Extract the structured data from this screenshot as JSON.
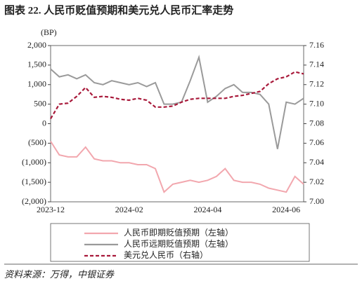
{
  "chart_data": {
    "type": "line",
    "title": "图表 22. 人民币贬值预期和美元兑人民币汇率走势",
    "y_axis_unit": "(BP)",
    "source": "资料来源：万得，中银证券",
    "categories": [
      "2023-12",
      null,
      null,
      null,
      null,
      null,
      null,
      null,
      null,
      "2024-02",
      null,
      null,
      null,
      null,
      null,
      null,
      null,
      null,
      "2024-04",
      null,
      null,
      null,
      null,
      null,
      null,
      null,
      null,
      "2024-06",
      null,
      null
    ],
    "ylim": [
      -2000,
      2000
    ],
    "yticks": [
      {
        "value": -2000,
        "label": "(2,000)"
      },
      {
        "value": -1500,
        "label": "(1,500)"
      },
      {
        "value": -1000,
        "label": "(1,000)"
      },
      {
        "value": -500,
        "label": "(500)"
      },
      0,
      500,
      {
        "value": 1000,
        "label": "1,000"
      },
      {
        "value": 1500,
        "label": "1,500"
      },
      {
        "value": 2000,
        "label": "2,000"
      }
    ],
    "y2lim": [
      7.0,
      7.16
    ],
    "y2ticks": [
      {
        "value": 7.0,
        "label": "7.00"
      },
      7.02,
      7.04,
      7.06,
      7.08,
      {
        "value": 7.1,
        "label": "7.10"
      },
      7.12,
      7.14,
      7.16
    ],
    "series": [
      {
        "name": "人民币即期贬值预期（左轴）",
        "color": "#f2a7ae",
        "dash": false,
        "values": [
          -450,
          -800,
          -850,
          -850,
          -600,
          -900,
          -950,
          -950,
          -1000,
          -1000,
          -1050,
          -1050,
          -1150,
          -1750,
          -1550,
          -1500,
          -1450,
          -1500,
          -1450,
          -1350,
          -1150,
          -1450,
          -1500,
          -1500,
          -1550,
          -1650,
          -1700,
          -1750,
          -1350,
          -1550
        ]
      },
      {
        "name": "人民币远期贬值预期（左轴）",
        "color": "#9a9a9a",
        "dash": false,
        "values": [
          1400,
          1200,
          1250,
          1150,
          1250,
          1050,
          1000,
          1100,
          1050,
          1000,
          1050,
          950,
          1050,
          500,
          500,
          550,
          1100,
          1700,
          550,
          700,
          900,
          1000,
          800,
          800,
          750,
          500,
          -650,
          550,
          500,
          650
        ]
      },
      {
        "name": "美元兑人民币（右轴）",
        "color": "#a8193a",
        "dash": true,
        "axis": "y2",
        "values": [
          7.085,
          7.1,
          7.101,
          7.108,
          7.117,
          7.107,
          7.108,
          7.107,
          7.105,
          7.104,
          7.106,
          7.104,
          7.097,
          7.097,
          7.098,
          7.102,
          7.105,
          7.106,
          7.106,
          7.106,
          7.106,
          7.108,
          7.109,
          7.111,
          7.113,
          7.121,
          7.126,
          7.128,
          7.133,
          7.131
        ]
      }
    ]
  }
}
